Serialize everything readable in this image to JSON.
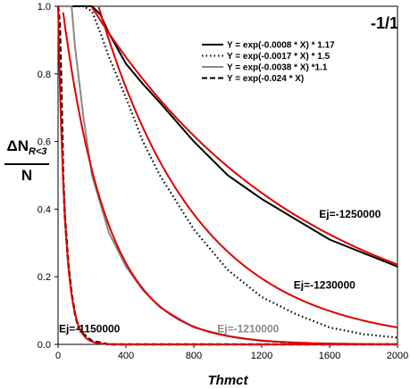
{
  "chart_data": {
    "type": "line",
    "panel_label": "-1/1",
    "xlabel": "Thmct",
    "ylabel": {
      "delta": "ΔN",
      "subscript": "R<3",
      "denominator": "N"
    },
    "xlim": [
      0,
      2000
    ],
    "ylim": [
      0,
      1
    ],
    "x_ticks": [
      "0",
      "400",
      "800",
      "1200",
      "1600",
      "2000"
    ],
    "y_ticks": [
      "0.0",
      "0.2",
      "0.4",
      "0.6",
      "0.8",
      "1.0"
    ],
    "legend": [
      {
        "label": "Y = exp(-0.0008 * X) * 1.17",
        "style": "solid",
        "color": "#000000"
      },
      {
        "label": "Y = exp(-0.0017 * X) * 1.5",
        "style": "dotted",
        "color": "#000000"
      },
      {
        "label": "Y = exp(-0.0038 * X) *1.1",
        "style": "solid",
        "color": "#888888"
      },
      {
        "label": "Y = exp(-0.024 * X)",
        "style": "dashed",
        "color": "#000000"
      }
    ],
    "annotations": [
      {
        "text": "Ej=-1250000",
        "x": 1720,
        "y": 0.375,
        "color": "#000000"
      },
      {
        "text": "Ej=-1230000",
        "x": 1570,
        "y": 0.165,
        "color": "#000000"
      },
      {
        "text": "Ej=-1210000",
        "x": 1120,
        "y": 0.035,
        "color": "#888888"
      },
      {
        "text": "Ej=-1150000",
        "x": 185,
        "y": 0.035,
        "color": "#000000"
      }
    ],
    "fits": [
      {
        "rate": 0.0008,
        "amp": 1.17,
        "color": "#dd0000"
      },
      {
        "rate": 0.0017,
        "amp": 1.5,
        "color": "#dd0000"
      },
      {
        "rate": 0.0038,
        "amp": 1.1,
        "color": "#dd0000"
      },
      {
        "rate": 0.024,
        "amp": 1.0,
        "color": "#dd0000"
      }
    ],
    "series": [
      {
        "style": "solid",
        "color": "#000000",
        "x": [
          0,
          100,
          200,
          250,
          300,
          400,
          500,
          600,
          800,
          1000,
          1200,
          1400,
          1600,
          1800,
          2000
        ],
        "y": [
          1.0,
          1.0,
          1.0,
          0.975,
          0.92,
          0.83,
          0.77,
          0.715,
          0.6,
          0.5,
          0.43,
          0.37,
          0.31,
          0.27,
          0.23
        ]
      },
      {
        "style": "dotted",
        "color": "#000000",
        "x": [
          0,
          100,
          150,
          200,
          250,
          300,
          400,
          500,
          600,
          800,
          1000,
          1200,
          1400,
          1600,
          1800,
          2000
        ],
        "y": [
          1.0,
          1.0,
          1.0,
          0.985,
          0.92,
          0.85,
          0.73,
          0.6,
          0.5,
          0.34,
          0.22,
          0.14,
          0.09,
          0.05,
          0.03,
          0.02
        ]
      },
      {
        "style": "solid",
        "color": "#888888",
        "x": [
          0,
          50,
          80,
          100,
          150,
          200,
          300,
          400,
          500,
          600,
          800,
          1000,
          1200,
          1600,
          2000
        ],
        "y": [
          1.0,
          1.0,
          1.0,
          0.88,
          0.67,
          0.5,
          0.33,
          0.23,
          0.16,
          0.11,
          0.05,
          0.025,
          0.01,
          0.0,
          0.0
        ]
      },
      {
        "style": "dashed",
        "color": "#000000",
        "x": [
          0,
          10,
          20,
          30,
          40,
          60,
          80,
          100,
          120,
          150,
          200,
          300,
          500,
          1000,
          2000
        ],
        "y": [
          1.0,
          0.95,
          0.74,
          0.5,
          0.38,
          0.24,
          0.15,
          0.09,
          0.05,
          0.03,
          0.01,
          0.0,
          0.0,
          0.0,
          0.0
        ]
      }
    ]
  }
}
